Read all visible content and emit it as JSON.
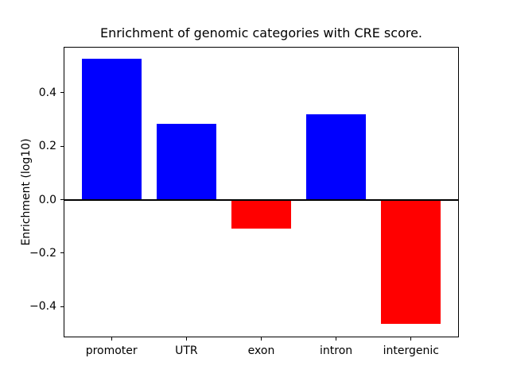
{
  "figure": {
    "background": "#ffffff",
    "text_color": "#000000"
  },
  "chart_data": {
    "type": "bar",
    "title": "Enrichment of genomic categories with CRE score.",
    "xlabel": "",
    "ylabel": "Enrichment (log10)",
    "categories": [
      "promoter",
      "UTR",
      "exon",
      "intron",
      "intergenic"
    ],
    "values": [
      0.529,
      0.284,
      -0.107,
      0.32,
      -0.465
    ],
    "bar_colors": [
      "#0000ff",
      "#0000ff",
      "#ff0000",
      "#0000ff",
      "#ff0000"
    ],
    "positive_color": "#0000ff",
    "negative_color": "#ff0000",
    "ylim": [
      -0.515,
      0.572
    ],
    "xlim": [
      -0.64,
      4.64
    ],
    "yticks": [
      0.4,
      0.2,
      0.0,
      -0.2,
      -0.4
    ],
    "ytick_labels": [
      "0.4",
      "0.2",
      "0.0",
      "−0.2",
      "−0.4"
    ],
    "bar_width_fraction": 0.8,
    "grid": false,
    "legend": null,
    "zero_line": true,
    "axis_color": "#000000"
  }
}
